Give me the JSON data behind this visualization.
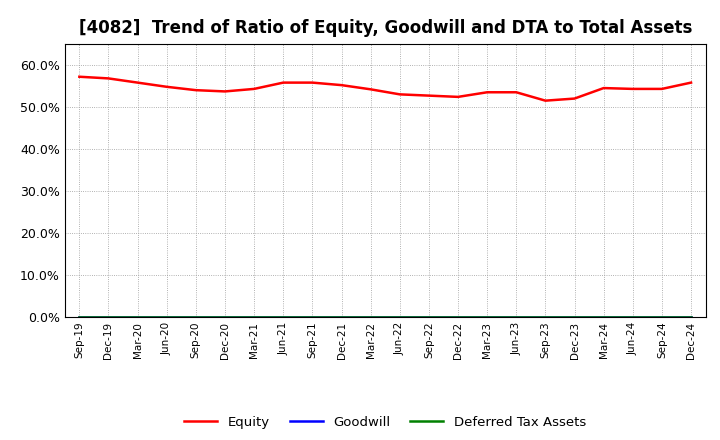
{
  "title": "[4082]  Trend of Ratio of Equity, Goodwill and DTA to Total Assets",
  "x_labels": [
    "Sep-19",
    "Dec-19",
    "Mar-20",
    "Jun-20",
    "Sep-20",
    "Dec-20",
    "Mar-21",
    "Jun-21",
    "Sep-21",
    "Dec-21",
    "Mar-22",
    "Jun-22",
    "Sep-22",
    "Dec-22",
    "Mar-23",
    "Jun-23",
    "Sep-23",
    "Dec-23",
    "Mar-24",
    "Jun-24",
    "Sep-24",
    "Dec-24"
  ],
  "equity": [
    0.572,
    0.568,
    0.558,
    0.548,
    0.54,
    0.537,
    0.543,
    0.558,
    0.558,
    0.552,
    0.542,
    0.53,
    0.527,
    0.524,
    0.535,
    0.535,
    0.515,
    0.52,
    0.545,
    0.543,
    0.543,
    0.558
  ],
  "goodwill": [
    0.0,
    0.0,
    0.0,
    0.0,
    0.0,
    0.0,
    0.0,
    0.0,
    0.0,
    0.0,
    0.0,
    0.0,
    0.0,
    0.0,
    0.0,
    0.0,
    0.0,
    0.0,
    0.0,
    0.0,
    0.0,
    0.0
  ],
  "dta": [
    0.0,
    0.0,
    0.0,
    0.0,
    0.0,
    0.0,
    0.0,
    0.0,
    0.0,
    0.0,
    0.0,
    0.0,
    0.0,
    0.0,
    0.0,
    0.0,
    0.0,
    0.0,
    0.0,
    0.0,
    0.0,
    0.0
  ],
  "equity_color": "#FF0000",
  "goodwill_color": "#0000FF",
  "dta_color": "#008000",
  "ylim": [
    0.0,
    0.65
  ],
  "yticks": [
    0.0,
    0.1,
    0.2,
    0.3,
    0.4,
    0.5,
    0.6
  ],
  "background_color": "#FFFFFF",
  "grid_color": "#999999",
  "title_fontsize": 12,
  "legend_labels": [
    "Equity",
    "Goodwill",
    "Deferred Tax Assets"
  ]
}
